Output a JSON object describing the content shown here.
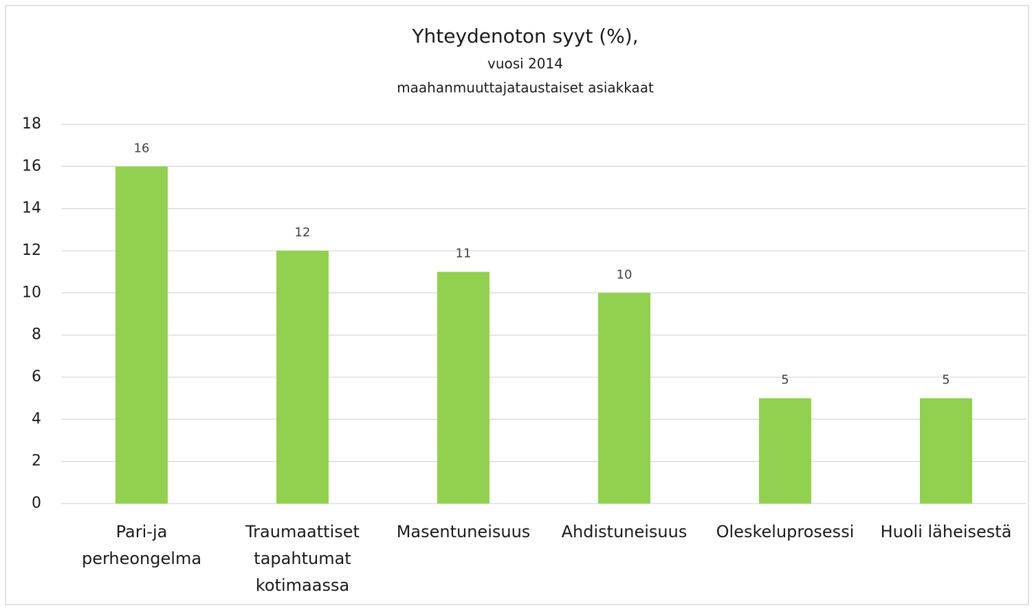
{
  "chart_data": {
    "type": "bar",
    "title": "Yhteydenoton syyt (%),",
    "subtitle": [
      "vuosi 2014",
      "maahanmuuttajataustaiset asiakkaat"
    ],
    "categories": [
      [
        "Pari-ja",
        "perheongelma"
      ],
      [
        "Traumaattiset",
        "tapahtumat",
        "kotimaassa"
      ],
      [
        "Masentuneisuus"
      ],
      [
        "Ahdistuneisuus"
      ],
      [
        "Oleskeluprosessi"
      ],
      [
        "Huoli läheisestä"
      ]
    ],
    "values": [
      16,
      12,
      11,
      10,
      5,
      5
    ],
    "color": "#92d050",
    "ylim": [
      0,
      18
    ],
    "yticks": [
      0,
      2,
      4,
      6,
      8,
      10,
      12,
      14,
      16,
      18
    ],
    "grid": true
  }
}
